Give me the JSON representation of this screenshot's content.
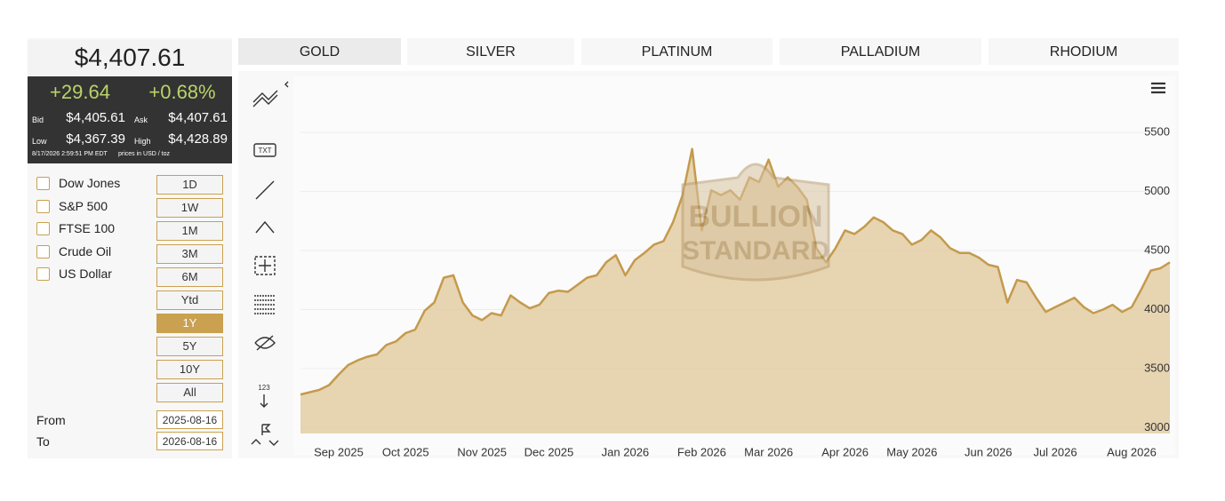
{
  "quote": {
    "price": "$4,407.61",
    "change": "+29.64",
    "change_pct": "+0.68%",
    "bid_label": "Bid",
    "bid": "$4,405.61",
    "ask_label": "Ask",
    "ask": "$4,407.61",
    "low_label": "Low",
    "low": "$4,367.39",
    "high_label": "High",
    "high": "$4,428.89",
    "timestamp": "8/17/2026 2:59:51 PM EDT",
    "units": "prices in USD / toz"
  },
  "compare": [
    "Dow Jones",
    "S&P 500",
    "FTSE 100",
    "Crude Oil",
    "US Dollar"
  ],
  "ranges": {
    "options": [
      "1D",
      "1W",
      "1M",
      "3M",
      "6M",
      "Ytd",
      "1Y",
      "5Y",
      "10Y",
      "All"
    ],
    "active": 6
  },
  "from_label": "From",
  "from": "2025-08-16",
  "to_label": "To",
  "to": "2026-08-16",
  "tabs": {
    "items": [
      "GOLD",
      "SILVER",
      "PLATINUM",
      "PALLADIUM",
      "RHODIUM"
    ],
    "active": 0
  },
  "toolbar": {
    "text_tool": "TXT",
    "measure_tool": "123"
  },
  "chart_data": {
    "type": "area",
    "watermark": [
      "BULLION",
      "STANDARD"
    ],
    "categories": [
      null,
      null,
      null,
      null,
      "Sep 2025",
      null,
      null,
      null,
      null,
      null,
      null,
      "Oct 2025",
      null,
      null,
      null,
      null,
      null,
      null,
      null,
      "Nov 2025",
      null,
      null,
      null,
      null,
      null,
      null,
      "Dec 2025",
      null,
      null,
      null,
      null,
      null,
      null,
      null,
      "Jan 2026",
      null,
      null,
      null,
      null,
      null,
      null,
      null,
      "Feb 2026",
      null,
      null,
      null,
      null,
      null,
      null,
      "Mar 2026",
      null,
      null,
      null,
      null,
      null,
      null,
      null,
      "Apr 2026",
      null,
      null,
      null,
      null,
      null,
      null,
      "May 2026",
      null,
      null,
      null,
      null,
      null,
      null,
      null,
      "Jun 2026",
      null,
      null,
      null,
      null,
      null,
      null,
      "Jul 2026",
      null,
      null,
      null,
      null,
      null,
      null,
      null,
      "Aug 2026",
      null,
      null,
      null,
      null
    ],
    "values": [
      3280,
      3300,
      3320,
      3360,
      3450,
      3530,
      3570,
      3600,
      3620,
      3700,
      3730,
      3800,
      3830,
      3990,
      4060,
      4270,
      4290,
      4060,
      3950,
      3910,
      3970,
      3950,
      4120,
      4060,
      4010,
      4040,
      4140,
      4160,
      4150,
      4210,
      4270,
      4290,
      4400,
      4460,
      4290,
      4420,
      4480,
      4550,
      4580,
      4740,
      4970,
      5360,
      4670,
      5010,
      4970,
      5010,
      4930,
      5120,
      5080,
      5270,
      5040,
      5120,
      5040,
      4930,
      4520,
      4400,
      4520,
      4670,
      4640,
      4700,
      4780,
      4740,
      4670,
      4640,
      4550,
      4590,
      4670,
      4610,
      4520,
      4480,
      4480,
      4440,
      4380,
      4360,
      4060,
      4250,
      4230,
      4100,
      3980,
      4020,
      4060,
      4100,
      4020,
      3970,
      4000,
      4040,
      3980,
      4020,
      4170,
      4330,
      4350,
      4400
    ],
    "color": "#c49a4c",
    "fill_color": "#e3cca3",
    "ylim": [
      2950,
      5960
    ],
    "yticks": [
      3000,
      3500,
      4000,
      4500,
      5000,
      5500
    ],
    "grid": true
  }
}
